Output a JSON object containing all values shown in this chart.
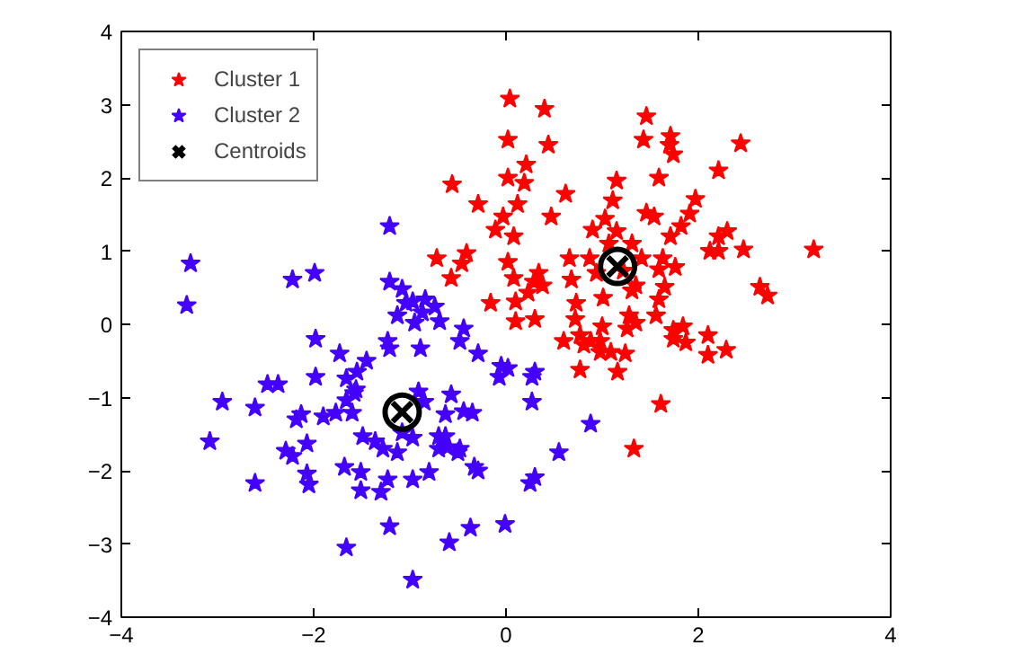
{
  "chart_data": {
    "type": "scatter",
    "xlim": [
      -4,
      4
    ],
    "ylim": [
      -4,
      4
    ],
    "xticks": [
      -4,
      -2,
      0,
      2,
      4
    ],
    "yticks": [
      -4,
      -3,
      -2,
      -1,
      0,
      1,
      2,
      3,
      4
    ],
    "grid": false,
    "legend": "top left",
    "series": [
      {
        "name": "Cluster 1",
        "color": "#ff0000",
        "marker": "star",
        "x": [
          0.04,
          0.4,
          0.02,
          0.44,
          1.46,
          1.43,
          1.71,
          1.7,
          1.74,
          2.44,
          0.21,
          -0.56,
          0.02,
          0.19,
          0.62,
          1.15,
          1.59,
          2.21,
          -0.29,
          0.12,
          1.11,
          1.97,
          -0.03,
          0.47,
          1.46,
          1.54,
          1.91,
          -0.11,
          0.08,
          0.9,
          1.03,
          1.15,
          1.82,
          1.71,
          2.21,
          2.3,
          1.07,
          1.31,
          -0.72,
          -0.41,
          -0.46,
          0.02,
          0.66,
          0.87,
          1.41,
          2.12,
          2.21,
          2.47,
          3.2,
          1.63,
          1.59,
          1.76,
          -0.57,
          0.08,
          0.34,
          0.29,
          0.38,
          0.68,
          0.94,
          1.22,
          1.35,
          1.31,
          1.65,
          2.64,
          2.72,
          0.23,
          1.01,
          -0.16,
          0.1,
          0.73,
          1.59,
          1.28,
          1.35,
          1.56,
          0.1,
          0.3,
          0.72,
          1.0,
          1.26,
          1.74,
          1.84,
          1.74,
          1.87,
          2.1,
          2.29,
          2.1,
          0.6,
          0.77,
          0.81,
          0.88,
          0.98,
          0.98,
          1.09,
          1.24,
          0.77,
          1.16,
          1.61,
          1.33
        ],
        "values": [
          3.08,
          2.94,
          2.52,
          2.45,
          2.84,
          2.52,
          2.57,
          2.45,
          2.32,
          2.47,
          2.18,
          1.91,
          2.0,
          1.93,
          1.78,
          1.96,
          2.0,
          2.1,
          1.64,
          1.64,
          1.69,
          1.71,
          1.47,
          1.47,
          1.52,
          1.47,
          1.51,
          1.29,
          1.2,
          1.29,
          1.44,
          1.27,
          1.34,
          1.2,
          1.2,
          1.27,
          1.1,
          1.1,
          0.9,
          0.97,
          0.83,
          0.85,
          0.9,
          0.9,
          0.9,
          1.0,
          1.0,
          1.02,
          1.02,
          0.9,
          0.75,
          0.78,
          0.63,
          0.63,
          0.7,
          0.58,
          0.53,
          0.61,
          0.7,
          0.73,
          0.53,
          0.46,
          0.51,
          0.51,
          0.39,
          0.43,
          0.36,
          0.29,
          0.31,
          0.29,
          0.34,
          0.12,
          0.02,
          0.12,
          0.04,
          0.07,
          0.07,
          -0.03,
          -0.06,
          -0.08,
          -0.03,
          -0.2,
          -0.25,
          -0.15,
          -0.35,
          -0.42,
          -0.23,
          -0.15,
          -0.28,
          -0.23,
          -0.23,
          -0.38,
          -0.38,
          -0.4,
          -0.62,
          -0.65,
          -1.09,
          -1.7
        ]
      },
      {
        "name": "Cluster 2",
        "color": "#4400ff",
        "marker": "star",
        "x": [
          -1.21,
          -3.28,
          -3.32,
          -2.22,
          -1.99,
          -1.21,
          -1.08,
          -1.04,
          -0.97,
          -0.84,
          -0.74,
          -0.87,
          -1.13,
          -0.95,
          -0.69,
          -0.44,
          -0.48,
          -0.29,
          -1.98,
          -1.23,
          -1.21,
          -0.89,
          -1.73,
          -1.45,
          -1.55,
          -1.66,
          -1.98,
          -2.48,
          -2.37,
          -0.05,
          0.02,
          -0.07,
          -1.56,
          -1.58,
          -1.66,
          -0.91,
          -0.57,
          -0.85,
          -2.95,
          -2.61,
          -2.13,
          -2.18,
          -1.9,
          -1.77,
          -1.6,
          -0.63,
          -0.44,
          -0.35,
          -1.08,
          -0.97,
          -1.49,
          -1.36,
          -1.28,
          -1.13,
          -3.08,
          -2.07,
          -2.29,
          -2.22,
          -0.7,
          -0.63,
          -0.7,
          -0.61,
          -0.48,
          -0.5,
          -1.68,
          -1.51,
          -0.8,
          -0.33,
          -0.29,
          -2.07,
          -2.61,
          -2.05,
          -1.23,
          -0.97,
          -1.51,
          -1.3,
          -1.21,
          -0.37,
          -0.01,
          -0.59,
          -1.66,
          -0.97,
          0.3,
          0.27,
          0.27,
          0.88,
          0.55,
          0.3,
          0.25
        ],
        "values": [
          1.34,
          0.83,
          0.26,
          0.61,
          0.7,
          0.58,
          0.48,
          0.29,
          0.31,
          0.34,
          0.24,
          0.16,
          0.12,
          0.02,
          0.04,
          -0.06,
          -0.23,
          -0.4,
          -0.2,
          -0.23,
          -0.33,
          -0.33,
          -0.4,
          -0.5,
          -0.65,
          -0.74,
          -0.72,
          -0.82,
          -0.82,
          -0.57,
          -0.6,
          -0.72,
          -0.89,
          -0.94,
          -1.04,
          -0.92,
          -0.96,
          -1.06,
          -1.06,
          -1.14,
          -1.23,
          -1.3,
          -1.26,
          -1.21,
          -1.21,
          -1.23,
          -1.19,
          -1.21,
          -1.48,
          -1.55,
          -1.53,
          -1.6,
          -1.7,
          -1.75,
          -1.6,
          -1.63,
          -1.73,
          -1.8,
          -1.53,
          -1.53,
          -1.7,
          -1.68,
          -1.7,
          -1.75,
          -1.95,
          -2.02,
          -2.02,
          -1.95,
          -2.0,
          -2.04,
          -2.17,
          -2.19,
          -2.12,
          -2.12,
          -2.27,
          -2.29,
          -2.76,
          -2.78,
          -2.73,
          -2.98,
          -3.05,
          -3.49,
          -0.65,
          -0.72,
          -1.06,
          -1.36,
          -1.75,
          -2.09,
          -2.17
        ]
      },
      {
        "name": "Centroids",
        "color": "#000000",
        "marker": "cross",
        "x": [
          1.16,
          -1.08
        ],
        "values": [
          0.79,
          -1.2
        ]
      }
    ]
  }
}
